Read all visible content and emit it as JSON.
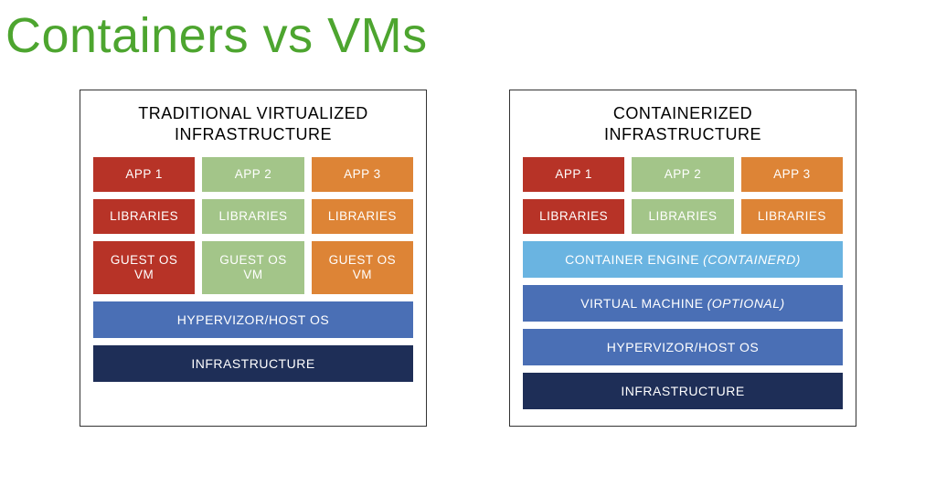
{
  "title": "Containers vs VMs",
  "title_color": "#4da52f",
  "colors": {
    "red": "#b73327",
    "green": "#a3c589",
    "orange": "#dd8436",
    "light_blue": "#6ab4e1",
    "mid_blue": "#4a6fb5",
    "dark_blue": "#1e2e57",
    "panel_border": "#333333",
    "text_white": "#ffffff",
    "title_black": "#111111"
  },
  "left": {
    "heading": "TRADITIONAL VIRTUALIZED\nINFRASTRUCTURE",
    "apps": [
      {
        "label": "APP 1",
        "bg": "#b73327"
      },
      {
        "label": "APP 2",
        "bg": "#a3c589"
      },
      {
        "label": "APP 3",
        "bg": "#dd8436"
      }
    ],
    "libs": [
      {
        "label": "LIBRARIES",
        "bg": "#b73327"
      },
      {
        "label": "LIBRARIES",
        "bg": "#a3c589"
      },
      {
        "label": "LIBRARIES",
        "bg": "#dd8436"
      }
    ],
    "guests": [
      {
        "label": "GUEST OS\nVM",
        "bg": "#b73327"
      },
      {
        "label": "GUEST OS\nVM",
        "bg": "#a3c589"
      },
      {
        "label": "GUEST OS\nVM",
        "bg": "#dd8436"
      }
    ],
    "bars": [
      {
        "label": "HYPERVIZOR/HOST OS",
        "italic": "",
        "bg": "#4a6fb5"
      },
      {
        "label": "INFRASTRUCTURE",
        "italic": "",
        "bg": "#1e2e57"
      }
    ]
  },
  "right": {
    "heading": "CONTAINERIZED\nINFRASTRUCTURE",
    "apps": [
      {
        "label": "APP 1",
        "bg": "#b73327"
      },
      {
        "label": "APP 2",
        "bg": "#a3c589"
      },
      {
        "label": "APP 3",
        "bg": "#dd8436"
      }
    ],
    "libs": [
      {
        "label": "LIBRARIES",
        "bg": "#b73327"
      },
      {
        "label": "LIBRARIES",
        "bg": "#a3c589"
      },
      {
        "label": "LIBRARIES",
        "bg": "#dd8436"
      }
    ],
    "bars": [
      {
        "label": "CONTAINER ENGINE",
        "italic": "(CONTAINERD)",
        "bg": "#6ab4e1"
      },
      {
        "label": "VIRTUAL MACHINE",
        "italic": "(OPTIONAL)",
        "bg": "#4a6fb5"
      },
      {
        "label": "HYPERVIZOR/HOST OS",
        "italic": "",
        "bg": "#4a6fb5"
      },
      {
        "label": "INFRASTRUCTURE",
        "italic": "",
        "bg": "#1e2e57"
      }
    ]
  }
}
